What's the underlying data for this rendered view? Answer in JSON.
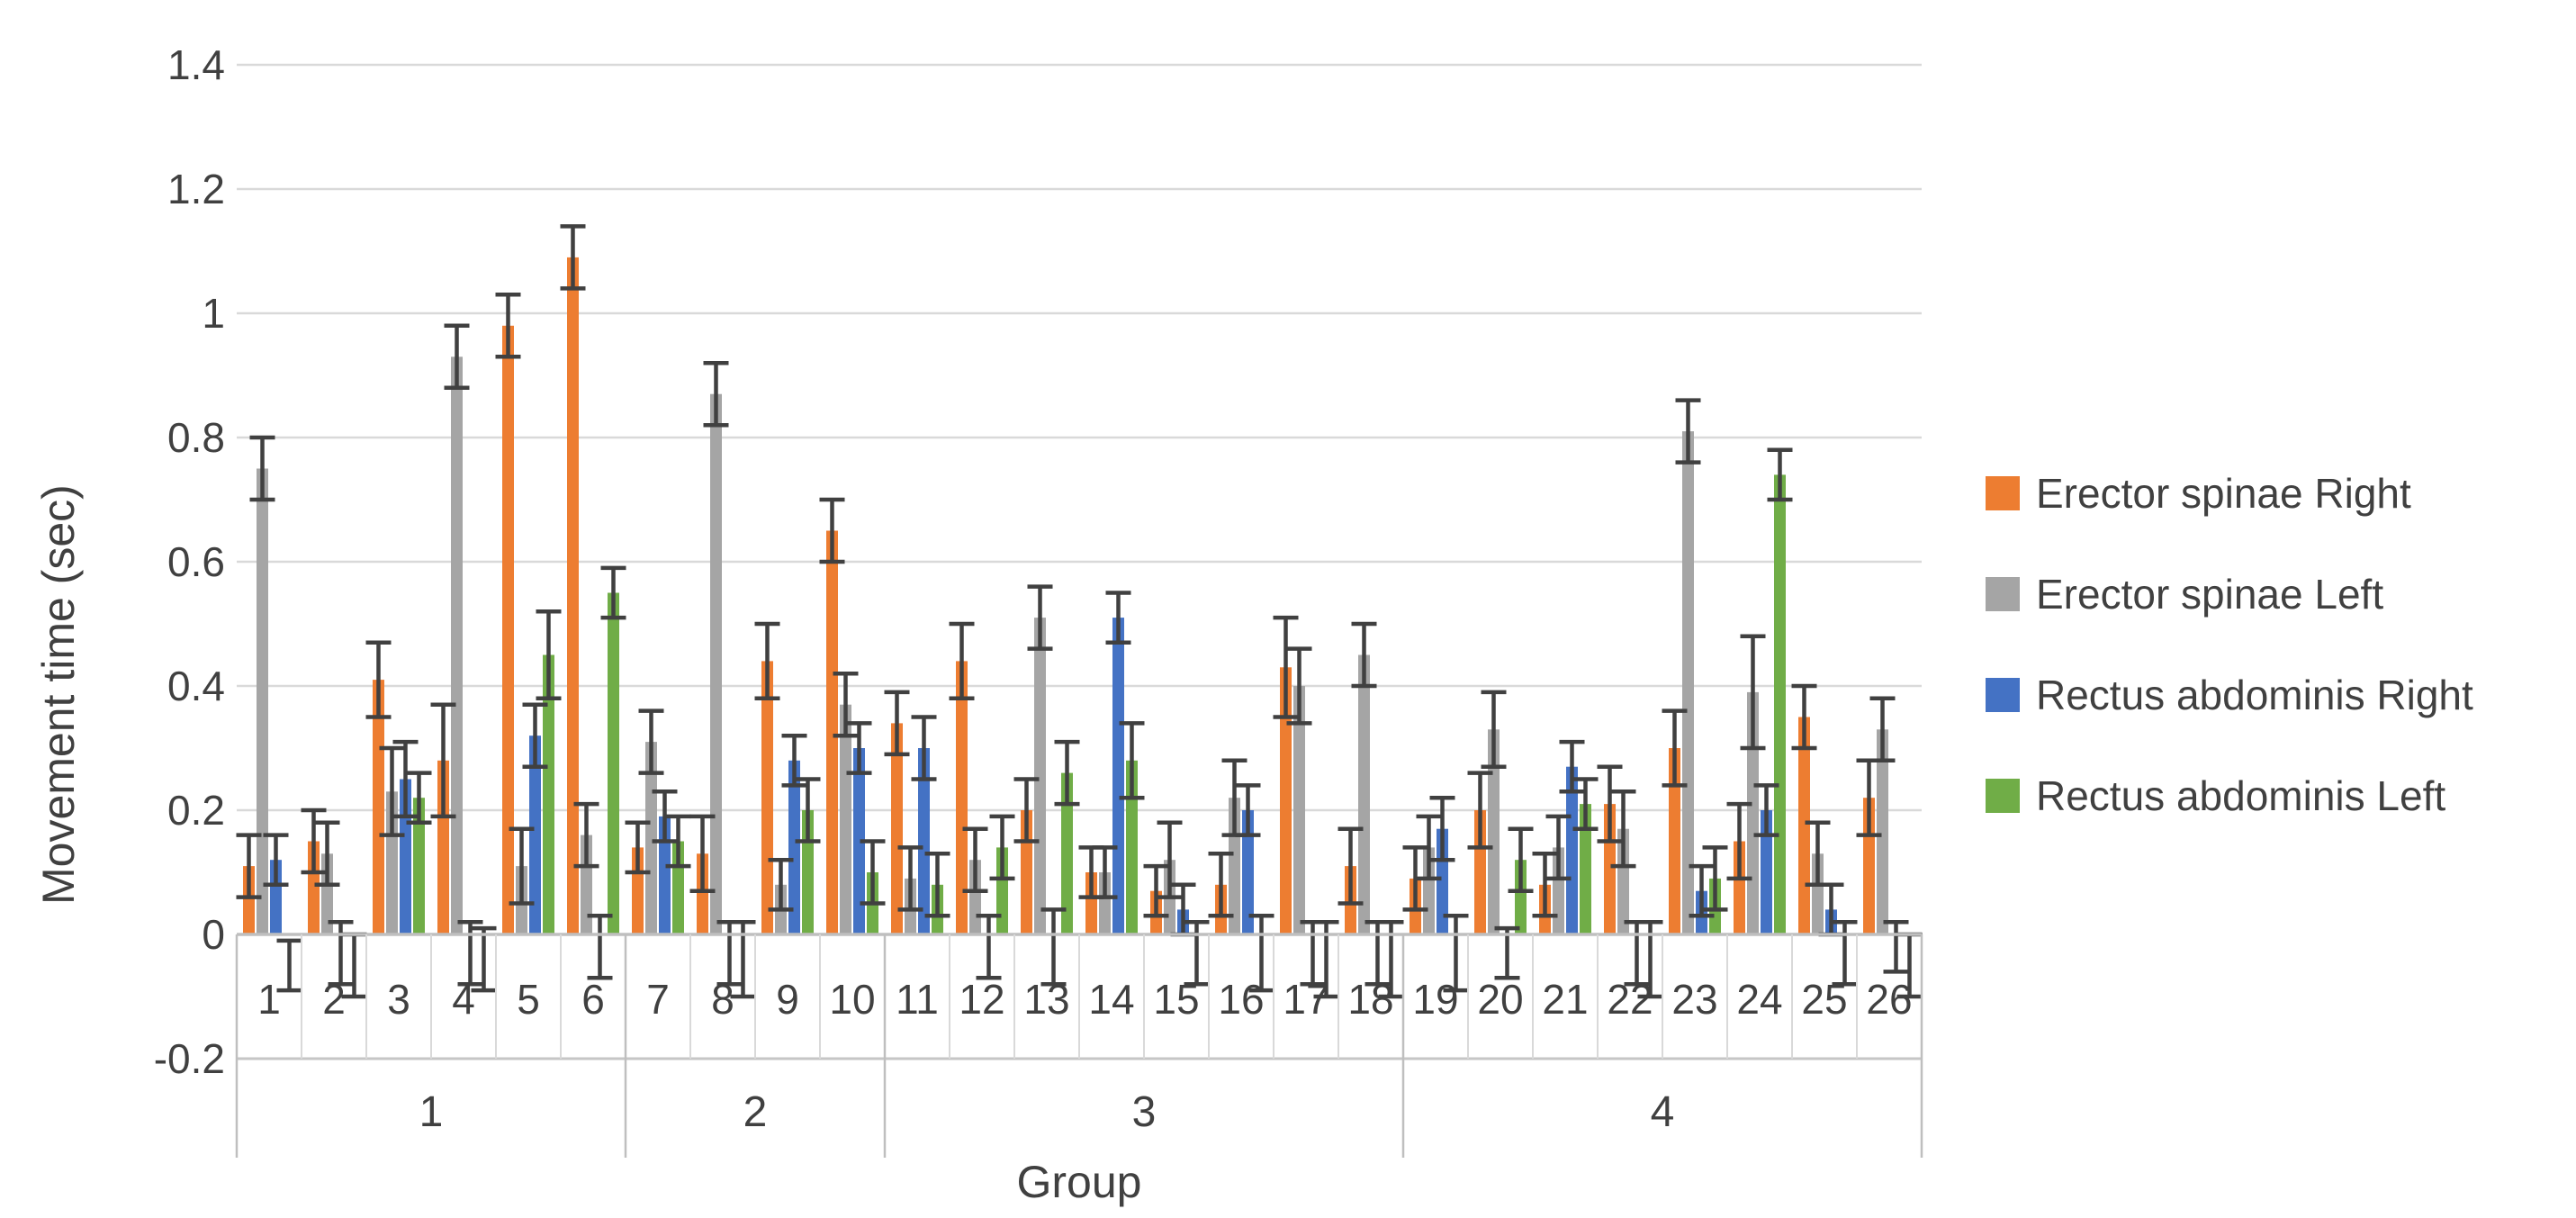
{
  "figure": {
    "background": "#ffffff",
    "text_color": "#404040",
    "gridline_color": "#d9d9d9",
    "axis_line_color": "#bfbfbf",
    "error_bar_color": "#404040"
  },
  "y_axis": {
    "label": "Movement time (sec)",
    "tick_labels": [
      "1.4",
      "1.2",
      "1",
      "0.8",
      "0.6",
      "0.4",
      "0.2",
      "0",
      "-0.2"
    ],
    "tick_values": [
      1.4,
      1.2,
      1.0,
      0.8,
      0.6,
      0.4,
      0.2,
      0.0,
      -0.2
    ]
  },
  "x_axis": {
    "label": "Group",
    "subject_labels": [
      "1",
      "2",
      "3",
      "4",
      "5",
      "6",
      "7",
      "8",
      "9",
      "10",
      "11",
      "12",
      "13",
      "14",
      "15",
      "16",
      "17",
      "18",
      "19",
      "20",
      "21",
      "22",
      "23",
      "24",
      "25",
      "26"
    ],
    "groups": [
      {
        "label": "1",
        "from": 1,
        "to": 6
      },
      {
        "label": "2",
        "from": 7,
        "to": 10
      },
      {
        "label": "3",
        "from": 11,
        "to": 18
      },
      {
        "label": "4",
        "from": 19,
        "to": 26
      }
    ]
  },
  "legend": {
    "position": "right",
    "items": [
      {
        "label": "Erector spinae Right",
        "color": "#ED7D31",
        "icon": "legend-swatch-orange"
      },
      {
        "label": "Erector spinae Left",
        "color": "#A5A5A5",
        "icon": "legend-swatch-gray"
      },
      {
        "label": "Rectus abdominis Right",
        "color": "#4472C4",
        "icon": "legend-swatch-blue"
      },
      {
        "label": "Rectus abdominis Left",
        "color": "#70AD47",
        "icon": "legend-swatch-green"
      }
    ]
  },
  "chart_data": {
    "type": "bar",
    "title": "",
    "xlabel": "Group",
    "ylabel": "Movement time (sec)",
    "ylim": [
      -0.2,
      1.4
    ],
    "grid": true,
    "error_bars": true,
    "legend_position": "right",
    "categories": [
      1,
      2,
      3,
      4,
      5,
      6,
      7,
      8,
      9,
      10,
      11,
      12,
      13,
      14,
      15,
      16,
      17,
      18,
      19,
      20,
      21,
      22,
      23,
      24,
      25,
      26
    ],
    "group_spans": [
      {
        "label": "1",
        "first_category": 1,
        "last_category": 6
      },
      {
        "label": "2",
        "first_category": 7,
        "last_category": 10
      },
      {
        "label": "3",
        "first_category": 11,
        "last_category": 18
      },
      {
        "label": "4",
        "first_category": 19,
        "last_category": 26
      }
    ],
    "series": [
      {
        "name": "Erector spinae Right",
        "color": "#ED7D31",
        "values": [
          0.11,
          0.15,
          0.41,
          0.28,
          0.98,
          1.09,
          0.14,
          0.13,
          0.44,
          0.65,
          0.34,
          0.44,
          0.2,
          0.1,
          0.07,
          0.08,
          0.43,
          0.11,
          0.09,
          0.2,
          0.08,
          0.21,
          0.3,
          0.15,
          0.35,
          0.22
        ],
        "errors": [
          0.05,
          0.05,
          0.06,
          0.09,
          0.05,
          0.05,
          0.04,
          0.06,
          0.06,
          0.05,
          0.05,
          0.06,
          0.05,
          0.04,
          0.04,
          0.05,
          0.08,
          0.06,
          0.05,
          0.06,
          0.05,
          0.06,
          0.06,
          0.06,
          0.05,
          0.06
        ]
      },
      {
        "name": "Erector spinae Left",
        "color": "#A5A5A5",
        "values": [
          0.75,
          0.13,
          0.23,
          0.93,
          0.11,
          0.16,
          0.31,
          0.87,
          0.08,
          0.37,
          0.09,
          0.12,
          0.51,
          0.1,
          0.12,
          0.22,
          0.4,
          0.45,
          0.14,
          0.33,
          0.14,
          0.17,
          0.81,
          0.39,
          0.13,
          0.33
        ],
        "errors": [
          0.05,
          0.05,
          0.07,
          0.05,
          0.06,
          0.05,
          0.05,
          0.05,
          0.04,
          0.05,
          0.05,
          0.05,
          0.05,
          0.04,
          0.06,
          0.06,
          0.06,
          0.05,
          0.05,
          0.06,
          0.05,
          0.06,
          0.05,
          0.09,
          0.05,
          0.05
        ]
      },
      {
        "name": "Rectus abdominis Right",
        "color": "#4472C4",
        "values": [
          0.12,
          -0.03,
          0.25,
          -0.03,
          0.32,
          -0.02,
          0.19,
          -0.03,
          0.28,
          0.3,
          0.3,
          -0.02,
          -0.02,
          0.51,
          0.04,
          0.2,
          -0.03,
          -0.03,
          0.17,
          -0.03,
          0.27,
          -0.03,
          0.07,
          0.2,
          0.04,
          -0.02
        ],
        "errors": [
          0.04,
          0.05,
          0.06,
          0.05,
          0.05,
          0.05,
          0.04,
          0.05,
          0.04,
          0.04,
          0.05,
          0.05,
          0.06,
          0.04,
          0.04,
          0.04,
          0.05,
          0.05,
          0.05,
          0.04,
          0.04,
          0.05,
          0.04,
          0.04,
          0.04,
          0.04
        ]
      },
      {
        "name": "Rectus abdominis Left",
        "color": "#70AD47",
        "values": [
          -0.05,
          -0.05,
          0.22,
          -0.04,
          0.45,
          0.55,
          0.15,
          -0.04,
          0.2,
          0.1,
          0.08,
          0.14,
          0.26,
          0.28,
          -0.03,
          -0.03,
          -0.04,
          -0.04,
          -0.03,
          0.12,
          0.21,
          -0.04,
          0.09,
          0.74,
          -0.03,
          -0.05
        ],
        "errors": [
          0.04,
          0.05,
          0.04,
          0.05,
          0.07,
          0.04,
          0.04,
          0.06,
          0.05,
          0.05,
          0.05,
          0.05,
          0.05,
          0.06,
          0.05,
          0.06,
          0.06,
          0.06,
          0.06,
          0.05,
          0.04,
          0.06,
          0.05,
          0.04,
          0.05,
          0.05
        ]
      }
    ]
  }
}
